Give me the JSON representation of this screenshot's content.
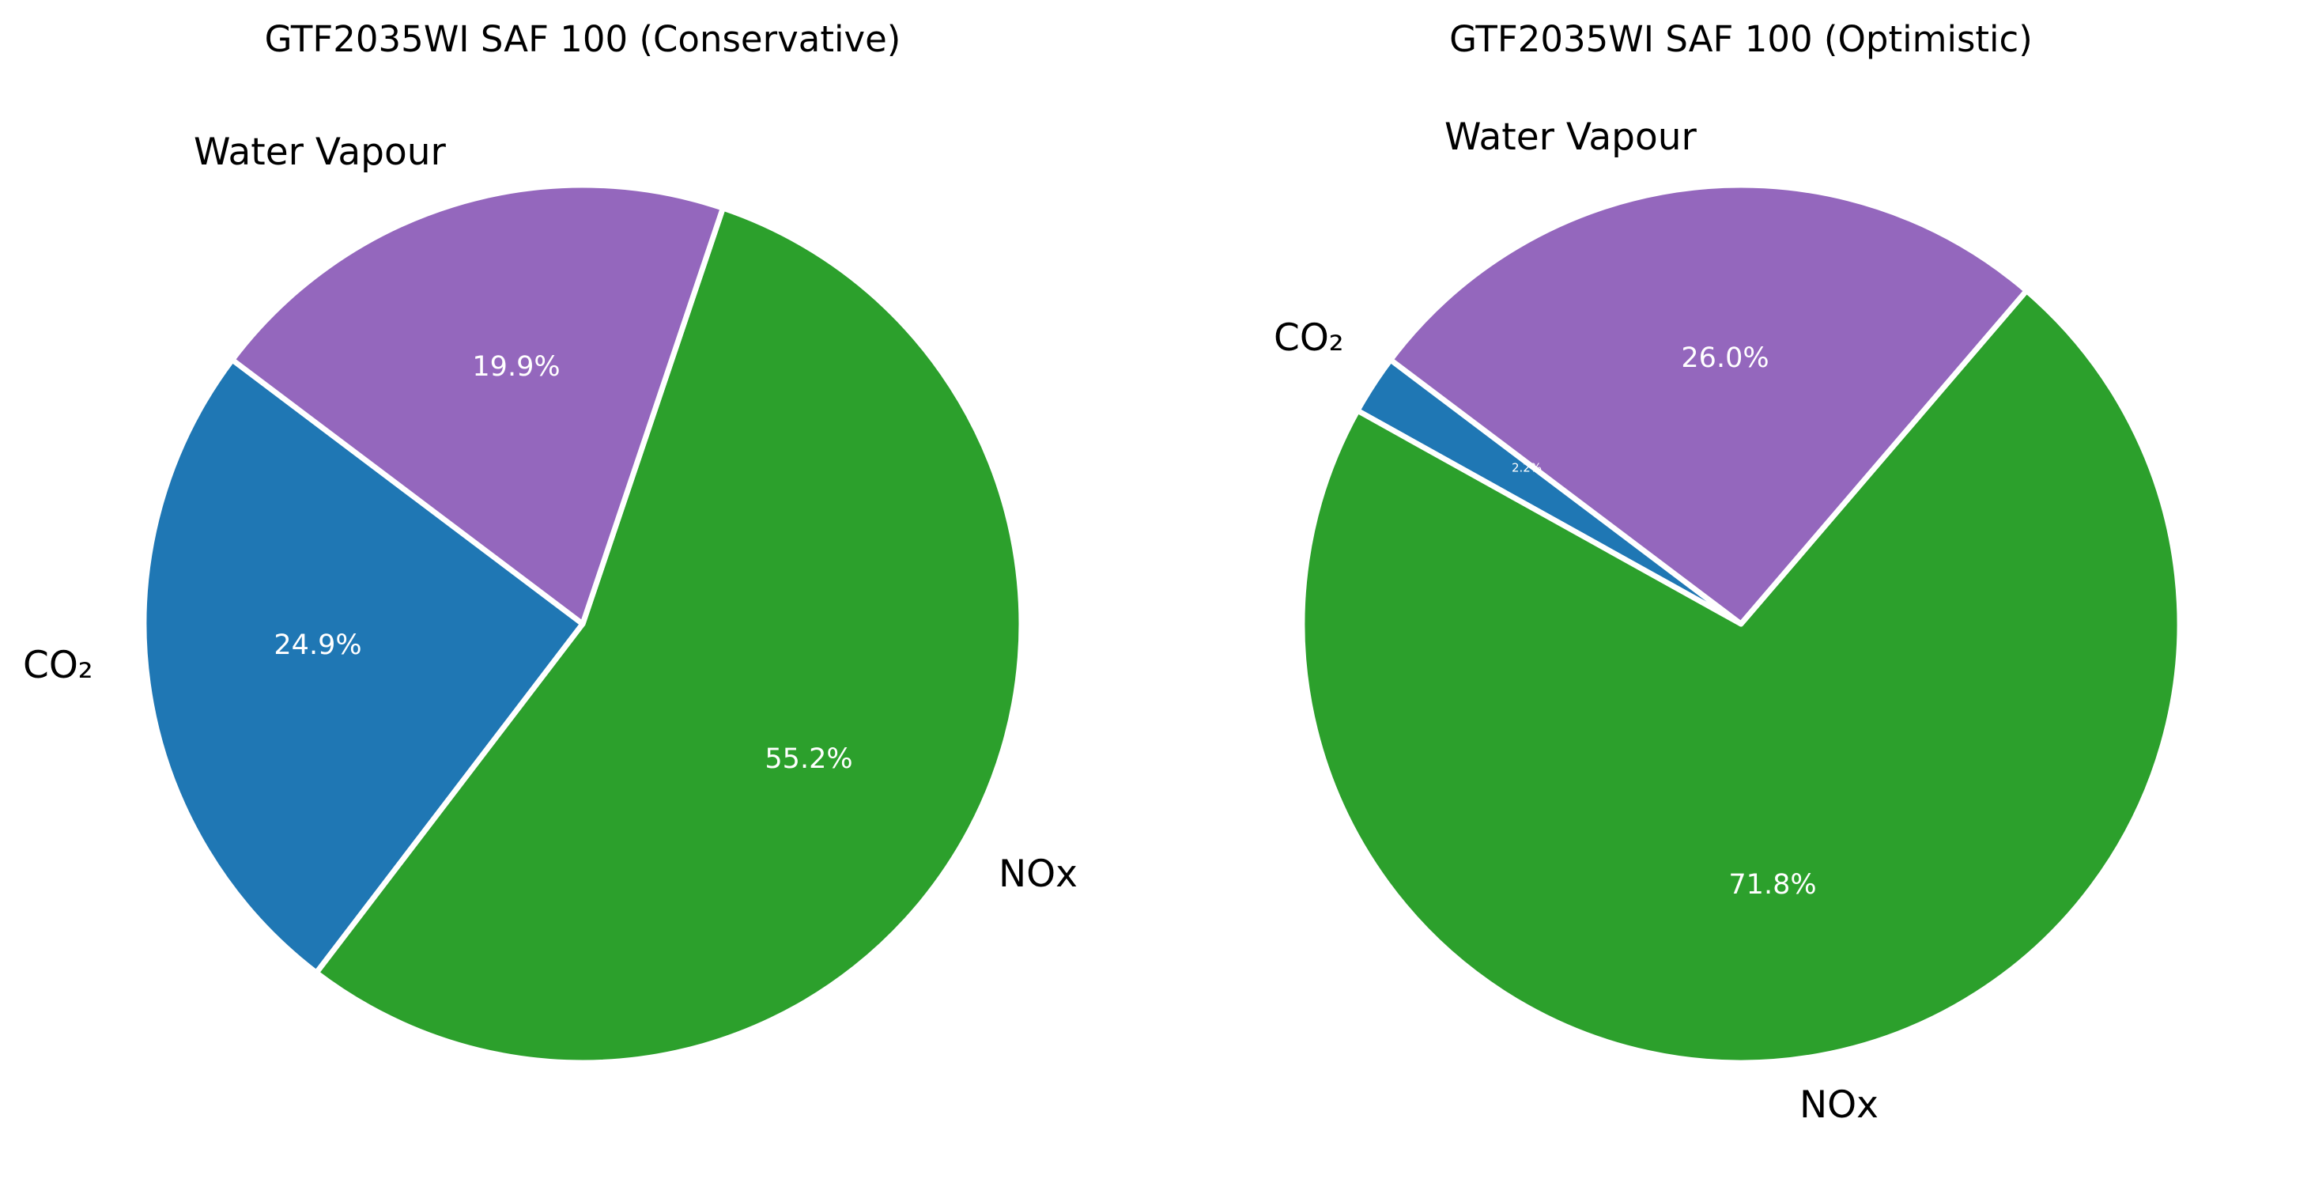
{
  "chart_data": [
    {
      "type": "pie",
      "title": "GTF2035WI SAF 100 (Conservative)",
      "categories": [
        "CO₂",
        "NOx",
        "Water Vapour"
      ],
      "values": [
        24.9,
        55.2,
        19.9
      ],
      "value_labels": [
        "24.9%",
        "55.2%",
        "19.9%"
      ],
      "colors": [
        "#1f77b4",
        "#2ca02c",
        "#9467bd"
      ],
      "legend": "none"
    },
    {
      "type": "pie",
      "title": "GTF2035WI SAF 100 (Optimistic)",
      "categories": [
        "CO₂",
        "NOx",
        "Water Vapour"
      ],
      "values": [
        2.2,
        71.8,
        26.0
      ],
      "value_labels": [
        "2.2%",
        "71.8%",
        "26.0%"
      ],
      "colors": [
        "#1f77b4",
        "#2ca02c",
        "#9467bd"
      ],
      "legend": "none"
    }
  ]
}
